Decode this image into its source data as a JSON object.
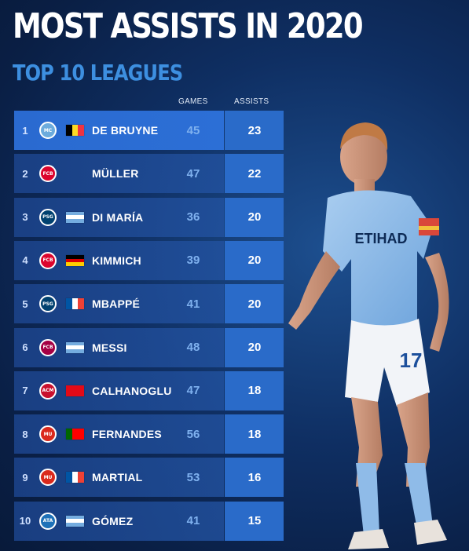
{
  "title": "MOST ASSISTS IN 2020",
  "subtitle": "TOP 10 LEAGUES",
  "columns": {
    "games": "GAMES",
    "assists": "ASSISTS"
  },
  "colors": {
    "title": "#ffffff",
    "subtitle": "#3d8fe0",
    "games_text": "#7fb1ef",
    "assist_panel": "#2a6bc9",
    "background": "#0f2f63"
  },
  "chart_data": {
    "type": "table",
    "title": "MOST ASSISTS IN 2020",
    "subtitle": "TOP 10 LEAGUES",
    "columns": [
      "GAMES",
      "ASSISTS"
    ],
    "rows": [
      {
        "rank": "1",
        "name": "DE BRUYNE",
        "games": "45",
        "assists": "23",
        "club": "man-city-badge",
        "flag": "belgium-flag"
      },
      {
        "rank": "2",
        "name": "MÜLLER",
        "games": "47",
        "assists": "22",
        "club": "bayern-badge",
        "flag": ""
      },
      {
        "rank": "3",
        "name": "DI MARÍA",
        "games": "36",
        "assists": "20",
        "club": "psg-badge",
        "flag": "argentina-flag"
      },
      {
        "rank": "4",
        "name": "KIMMICH",
        "games": "39",
        "assists": "20",
        "club": "bayern-badge",
        "flag": "germany-flag"
      },
      {
        "rank": "5",
        "name": "MBAPPÉ",
        "games": "41",
        "assists": "20",
        "club": "psg-badge",
        "flag": "france-flag"
      },
      {
        "rank": "6",
        "name": "MESSI",
        "games": "48",
        "assists": "20",
        "club": "barcelona-badge",
        "flag": "argentina-flag"
      },
      {
        "rank": "7",
        "name": "CALHANOGLU",
        "games": "47",
        "assists": "18",
        "club": "milan-badge",
        "flag": "turkey-flag"
      },
      {
        "rank": "8",
        "name": "FERNANDES",
        "games": "56",
        "assists": "18",
        "club": "sporting-man-utd-badges",
        "flag": "portugal-flag"
      },
      {
        "rank": "9",
        "name": "MARTIAL",
        "games": "53",
        "assists": "16",
        "club": "man-utd-badge",
        "flag": "france-flag"
      },
      {
        "rank": "10",
        "name": "GÓMEZ",
        "games": "41",
        "assists": "15",
        "club": "atalanta-badge",
        "flag": "argentina-flag"
      }
    ]
  },
  "player_image": {
    "icon": "player-photo",
    "shirt_number": "17",
    "sponsor": "ETIHAD"
  }
}
